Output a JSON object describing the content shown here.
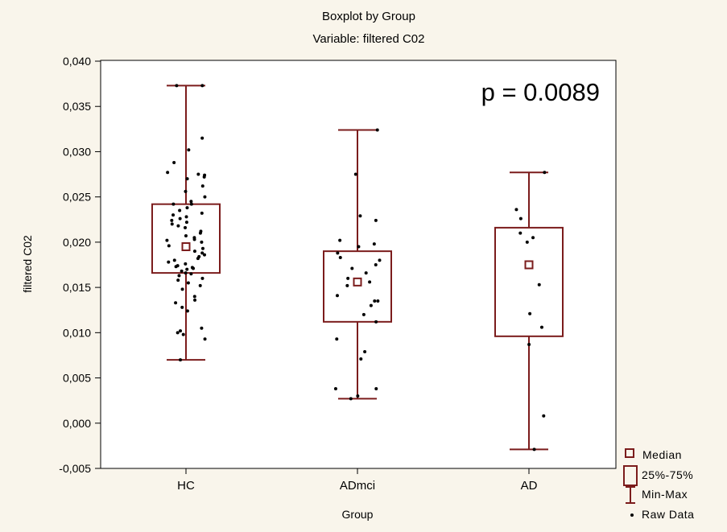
{
  "chart_data": {
    "type": "boxplot",
    "title": "Boxplot by Group",
    "subtitle": "Variable: filtered C02",
    "xlabel": "Group",
    "ylabel": "filtered C02",
    "ylim": [
      -0.005,
      0.04
    ],
    "yticks": [
      -0.005,
      0.0,
      0.005,
      0.01,
      0.015,
      0.02,
      0.025,
      0.03,
      0.035,
      0.04
    ],
    "ytick_labels": [
      "-0,005",
      "0,000",
      "0,005",
      "0,010",
      "0,015",
      "0,020",
      "0,025",
      "0,030",
      "0,035",
      "0,040"
    ],
    "grid": false,
    "legend_position": "bottom-right",
    "annotation": "p = 0.0089",
    "legend": [
      "Median",
      "25%-75%",
      "Min-Max",
      "Raw Data"
    ],
    "colors": {
      "box": "#7b1c1c",
      "points": "#000000",
      "background": "#f9f5eb",
      "plot_background": "#ffffff"
    },
    "categories": [
      "HC",
      "ADmci",
      "AD"
    ],
    "groups": [
      {
        "name": "HC",
        "median": 0.0195,
        "q1": 0.0166,
        "q3": 0.0242,
        "min": 0.007,
        "max": 0.0373,
        "points": [
          0.0373,
          0.0373,
          0.0315,
          0.0302,
          0.0288,
          0.0277,
          0.0275,
          0.0274,
          0.0272,
          0.027,
          0.0262,
          0.0256,
          0.025,
          0.0245,
          0.0242,
          0.0242,
          0.0238,
          0.0235,
          0.0232,
          0.023,
          0.0228,
          0.0226,
          0.0224,
          0.0222,
          0.022,
          0.0218,
          0.0216,
          0.0212,
          0.021,
          0.0207,
          0.0205,
          0.0203,
          0.0202,
          0.02,
          0.0198,
          0.0196,
          0.0193,
          0.019,
          0.0188,
          0.0186,
          0.0184,
          0.0182,
          0.018,
          0.0178,
          0.0176,
          0.0174,
          0.0173,
          0.0172,
          0.0171,
          0.017,
          0.0168,
          0.0166,
          0.0165,
          0.0163,
          0.016,
          0.0158,
          0.0155,
          0.0152,
          0.0148,
          0.014,
          0.0136,
          0.0133,
          0.0128,
          0.0124,
          0.0105,
          0.0102,
          0.01,
          0.0098,
          0.0093,
          0.007
        ]
      },
      {
        "name": "ADmci",
        "median": 0.0156,
        "q1": 0.0112,
        "q3": 0.019,
        "min": 0.0027,
        "max": 0.0324,
        "points": [
          0.0324,
          0.0275,
          0.0229,
          0.0224,
          0.0202,
          0.0198,
          0.0195,
          0.0188,
          0.0183,
          0.018,
          0.0175,
          0.0171,
          0.0166,
          0.016,
          0.0156,
          0.0152,
          0.0141,
          0.0135,
          0.0135,
          0.013,
          0.012,
          0.0112,
          0.0093,
          0.0079,
          0.0071,
          0.0038,
          0.0038,
          0.003,
          0.0027
        ]
      },
      {
        "name": "AD",
        "median": 0.0175,
        "q1": 0.0096,
        "q3": 0.0216,
        "min": -0.0029,
        "max": 0.0277,
        "points": [
          0.0277,
          0.0236,
          0.0226,
          0.021,
          0.0205,
          0.02,
          0.0153,
          0.0121,
          0.0106,
          0.0087,
          0.0008,
          -0.0029
        ]
      }
    ]
  }
}
